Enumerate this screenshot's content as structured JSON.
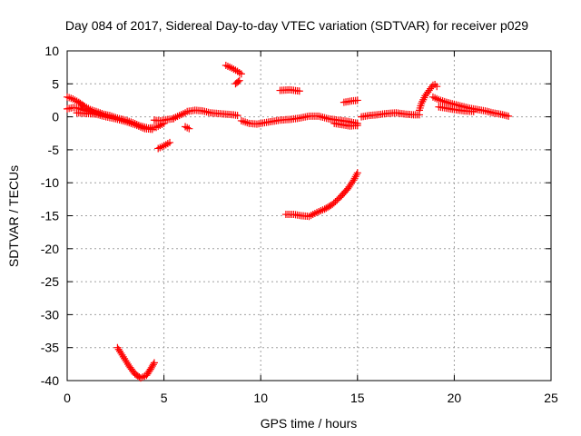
{
  "chart_data": {
    "type": "scatter",
    "title": "Day 084 of 2017, Sidereal Day-to-day VTEC variation (SDTVAR) for receiver p029",
    "xlabel": "GPS time / hours",
    "ylabel": "SDTVAR / TECUs",
    "xlim": [
      0,
      25
    ],
    "ylim": [
      -40,
      10
    ],
    "xticks": [
      0,
      5,
      10,
      15,
      20,
      25
    ],
    "yticks": [
      10,
      5,
      0,
      -5,
      -10,
      -15,
      -20,
      -25,
      -30,
      -35,
      -40
    ],
    "grid": true,
    "marker": "plus",
    "color": "#ff0000",
    "series": [
      {
        "name": "s1",
        "points": [
          [
            0,
            1.2
          ],
          [
            0.3,
            1.4
          ],
          [
            0.6,
            1.3
          ],
          [
            1.0,
            0.9
          ],
          [
            1.4,
            0.6
          ],
          [
            1.8,
            0.4
          ],
          [
            2.2,
            0.2
          ],
          [
            2.6,
            -0.2
          ],
          [
            3.0,
            -0.5
          ],
          [
            3.4,
            -0.9
          ],
          [
            3.8,
            -1.4
          ],
          [
            4.2,
            -1.7
          ],
          [
            4.6,
            -1.6
          ],
          [
            5.0,
            -1.0
          ]
        ]
      },
      {
        "name": "s2",
        "points": [
          [
            0,
            3.0
          ],
          [
            0.3,
            2.7
          ],
          [
            0.6,
            2.2
          ],
          [
            0.9,
            1.6
          ],
          [
            1.2,
            1.1
          ],
          [
            1.6,
            0.7
          ],
          [
            2.0,
            0.3
          ]
        ]
      },
      {
        "name": "s3",
        "points": [
          [
            0.5,
            0.6
          ],
          [
            1.0,
            0.5
          ],
          [
            1.5,
            0.4
          ],
          [
            2.0,
            0.0
          ],
          [
            2.5,
            -0.3
          ],
          [
            3.0,
            -0.7
          ],
          [
            3.5,
            -1.2
          ],
          [
            4.0,
            -1.8
          ],
          [
            4.4,
            -1.9
          ]
        ]
      },
      {
        "name": "s4",
        "points": [
          [
            4.5,
            -0.5
          ],
          [
            4.8,
            -0.6
          ],
          [
            5.2,
            -0.4
          ],
          [
            5.5,
            -0.3
          ]
        ]
      },
      {
        "name": "s5",
        "points": [
          [
            4.7,
            -4.8
          ],
          [
            5.0,
            -4.4
          ],
          [
            5.3,
            -3.9
          ]
        ]
      },
      {
        "name": "s6",
        "points": [
          [
            5.5,
            -0.2
          ],
          [
            5.8,
            0.2
          ],
          [
            6.1,
            0.6
          ]
        ]
      },
      {
        "name": "s7",
        "points": [
          [
            6.1,
            -1.5
          ],
          [
            6.3,
            -1.8
          ]
        ]
      },
      {
        "name": "s8",
        "points": [
          [
            6.2,
            0.8
          ],
          [
            6.6,
            1.0
          ],
          [
            7.0,
            0.9
          ],
          [
            7.4,
            0.6
          ],
          [
            7.8,
            0.5
          ],
          [
            8.2,
            0.4
          ],
          [
            8.6,
            0.3
          ],
          [
            8.8,
            0.2
          ]
        ]
      },
      {
        "name": "s9",
        "points": [
          [
            8.2,
            7.8
          ],
          [
            8.5,
            7.4
          ],
          [
            8.8,
            6.9
          ],
          [
            9.0,
            6.5
          ]
        ]
      },
      {
        "name": "s10",
        "points": [
          [
            8.7,
            5.0
          ],
          [
            8.9,
            5.5
          ]
        ]
      },
      {
        "name": "s11",
        "points": [
          [
            9.0,
            -0.6
          ],
          [
            9.4,
            -1.0
          ],
          [
            9.8,
            -1.1
          ],
          [
            10.2,
            -0.9
          ],
          [
            10.6,
            -0.7
          ],
          [
            11.0,
            -0.5
          ],
          [
            11.5,
            -0.4
          ],
          [
            12.0,
            -0.2
          ],
          [
            12.5,
            0.1
          ],
          [
            13.0,
            0.1
          ],
          [
            13.5,
            -0.3
          ],
          [
            14.0,
            -0.5
          ],
          [
            14.5,
            -0.7
          ],
          [
            15.0,
            -1.0
          ]
        ]
      },
      {
        "name": "s12",
        "points": [
          [
            11.0,
            4.0
          ],
          [
            11.5,
            4.1
          ],
          [
            12.0,
            3.9
          ]
        ]
      },
      {
        "name": "s13",
        "points": [
          [
            11.3,
            -14.8
          ],
          [
            11.7,
            -14.8
          ],
          [
            12.1,
            -15.0
          ],
          [
            12.5,
            -15.1
          ],
          [
            12.9,
            -14.5
          ],
          [
            13.3,
            -14.0
          ],
          [
            13.7,
            -13.3
          ],
          [
            14.1,
            -12.2
          ],
          [
            14.5,
            -10.9
          ],
          [
            14.8,
            -9.6
          ],
          [
            15.0,
            -8.5
          ]
        ]
      },
      {
        "name": "s14",
        "points": [
          [
            13.8,
            -1.0
          ],
          [
            14.2,
            -1.2
          ],
          [
            14.6,
            -1.4
          ],
          [
            15.0,
            -1.3
          ]
        ]
      },
      {
        "name": "s15",
        "points": [
          [
            14.3,
            2.2
          ],
          [
            14.7,
            2.4
          ],
          [
            15.0,
            2.5
          ]
        ]
      },
      {
        "name": "s16",
        "points": [
          [
            15.2,
            0.0
          ],
          [
            15.6,
            0.2
          ],
          [
            16.0,
            0.3
          ],
          [
            16.5,
            0.5
          ],
          [
            17.0,
            0.6
          ],
          [
            17.5,
            0.4
          ],
          [
            17.9,
            0.3
          ],
          [
            18.2,
            0.3
          ]
        ]
      },
      {
        "name": "s17",
        "points": [
          [
            18.2,
            1.0
          ],
          [
            18.3,
            2.0
          ],
          [
            18.5,
            3.2
          ],
          [
            18.7,
            4.0
          ],
          [
            18.9,
            4.8
          ],
          [
            19.0,
            4.9
          ],
          [
            19.1,
            4.6
          ]
        ]
      },
      {
        "name": "s18",
        "points": [
          [
            18.9,
            3.0
          ],
          [
            19.2,
            2.6
          ],
          [
            19.6,
            2.2
          ],
          [
            20.0,
            1.9
          ],
          [
            20.4,
            1.6
          ],
          [
            20.8,
            1.3
          ],
          [
            21.2,
            1.1
          ],
          [
            21.6,
            0.9
          ],
          [
            22.0,
            0.6
          ],
          [
            22.4,
            0.4
          ],
          [
            22.8,
            0.1
          ]
        ]
      },
      {
        "name": "s19",
        "points": [
          [
            19.2,
            1.5
          ],
          [
            19.6,
            1.3
          ],
          [
            20.0,
            1.1
          ],
          [
            20.5,
            0.9
          ],
          [
            21.0,
            0.8
          ]
        ]
      },
      {
        "name": "s20",
        "points": [
          [
            2.6,
            -35.0
          ],
          [
            2.9,
            -36.4
          ],
          [
            3.2,
            -37.8
          ],
          [
            3.5,
            -39.0
          ],
          [
            3.8,
            -39.6
          ],
          [
            4.1,
            -39.2
          ],
          [
            4.3,
            -38.3
          ],
          [
            4.5,
            -37.3
          ]
        ]
      }
    ]
  }
}
